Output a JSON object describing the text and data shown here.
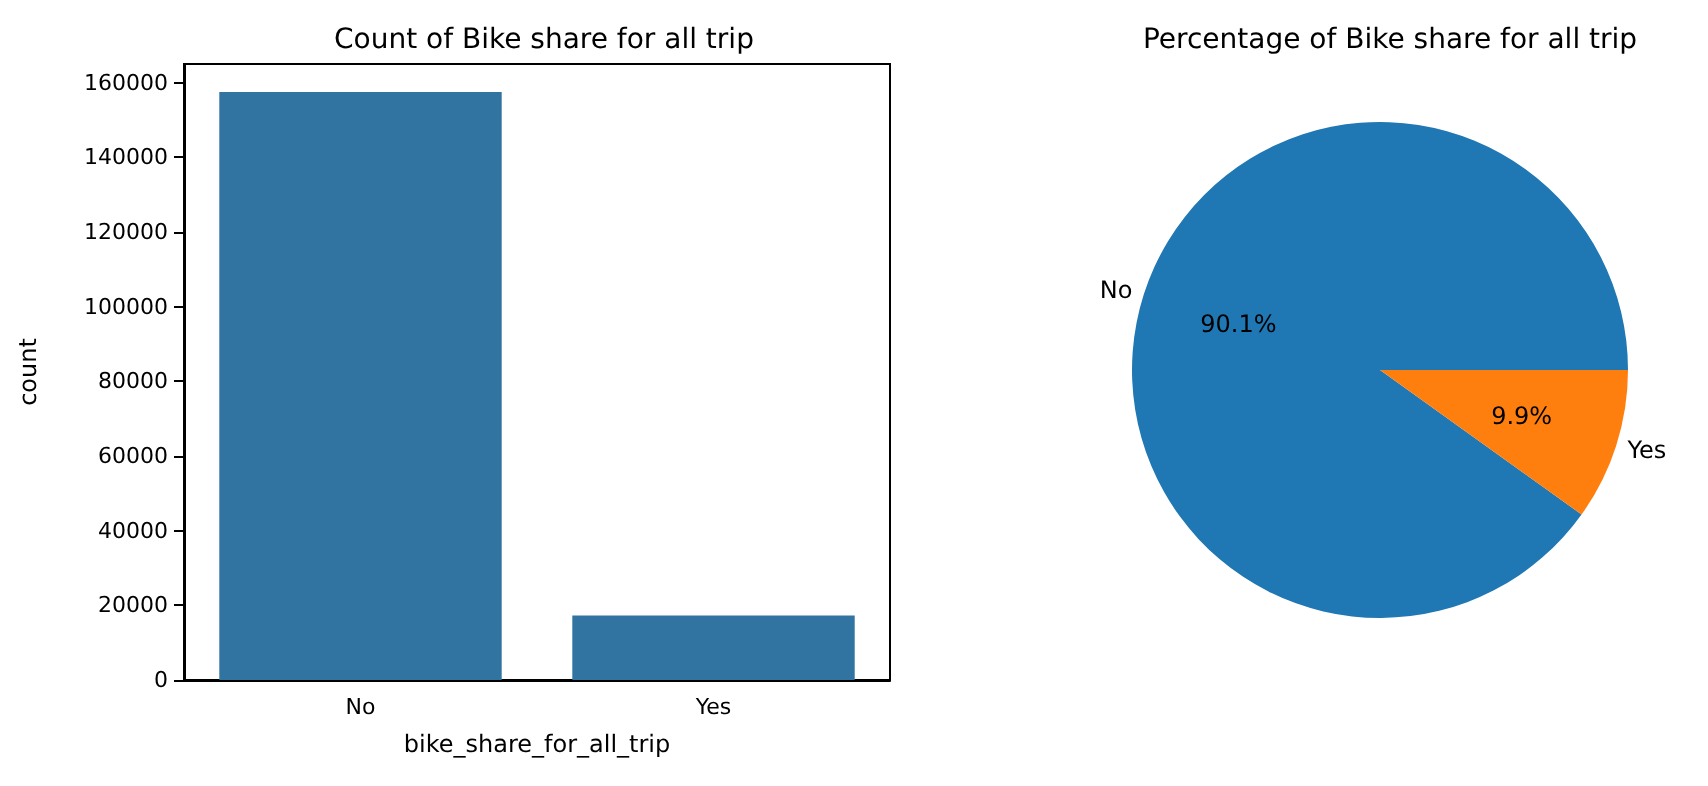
{
  "chart_data": [
    {
      "type": "bar",
      "title": "Count of Bike share for all trip",
      "xlabel": "bike_share_for_all_trip",
      "ylabel": "count",
      "categories": [
        "No",
        "Yes"
      ],
      "values": [
        157500,
        17300
      ],
      "color": "#3274a1",
      "ylim": [
        0,
        165000
      ],
      "yticks": [
        0,
        20000,
        40000,
        60000,
        80000,
        100000,
        120000,
        140000,
        160000
      ],
      "grid": false,
      "legend": false
    },
    {
      "type": "pie",
      "title": "Percentage of Bike share for all trip",
      "categories": [
        "No",
        "Yes"
      ],
      "values": [
        90.1,
        9.9
      ],
      "colors": [
        "#1f77b4",
        "#ff7f0e"
      ],
      "value_labels": [
        "90.1%",
        "9.9%"
      ],
      "legend": false
    }
  ]
}
